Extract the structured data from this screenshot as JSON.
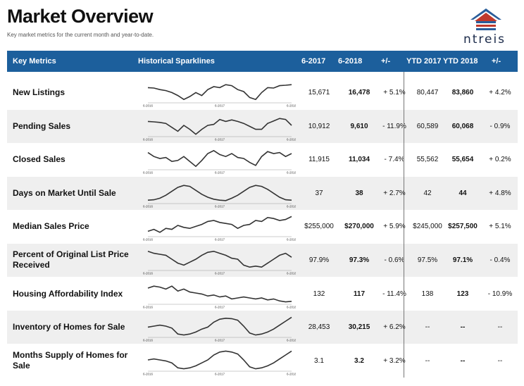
{
  "page": {
    "title": "Market Overview",
    "subtitle": "Key market metrics for the current month and year-to-date.",
    "logo_text": "ntreis"
  },
  "header": {
    "key_metrics": "Key Metrics",
    "sparklines": "Historical Sparklines",
    "m_2017": "6-2017",
    "m_2018": "6-2018",
    "change": "+/-",
    "ytd_2017": "YTD 2017",
    "ytd_2018": "YTD 2018",
    "ytd_change": "+/-"
  },
  "axis_labels": [
    "6-2016",
    "6-2017",
    "6-2018"
  ],
  "rows": [
    {
      "metric": "New Listings",
      "m2017": "15,671",
      "m2018": "16,478",
      "change": "+ 5.1%",
      "ytd2017": "80,447",
      "ytd2018": "83,860",
      "ytd_change": "+ 4.2%",
      "spark": [
        0.7,
        0.68,
        0.6,
        0.55,
        0.45,
        0.3,
        0.1,
        0.25,
        0.45,
        0.3,
        0.6,
        0.75,
        0.7,
        0.85,
        0.8,
        0.6,
        0.5,
        0.2,
        0.1,
        0.45,
        0.7,
        0.68,
        0.8,
        0.82,
        0.85
      ]
    },
    {
      "metric": "Pending Sales",
      "m2017": "10,912",
      "m2018": "9,610",
      "change": "- 11.9%",
      "ytd2017": "60,589",
      "ytd2018": "60,068",
      "ytd_change": "- 0.9%",
      "spark": [
        0.7,
        0.68,
        0.65,
        0.6,
        0.4,
        0.2,
        0.5,
        0.3,
        0.05,
        0.3,
        0.5,
        0.55,
        0.8,
        0.7,
        0.78,
        0.7,
        0.6,
        0.45,
        0.3,
        0.3,
        0.6,
        0.72,
        0.85,
        0.8,
        0.5
      ]
    },
    {
      "metric": "Closed Sales",
      "m2017": "11,915",
      "m2018": "11,034",
      "change": "- 7.4%",
      "ytd2017": "55,562",
      "ytd2018": "55,654",
      "ytd_change": "+ 0.2%",
      "spark": [
        0.8,
        0.6,
        0.5,
        0.55,
        0.35,
        0.4,
        0.6,
        0.35,
        0.1,
        0.4,
        0.75,
        0.9,
        0.7,
        0.6,
        0.75,
        0.55,
        0.5,
        0.3,
        0.15,
        0.6,
        0.85,
        0.75,
        0.8,
        0.6,
        0.75
      ]
    },
    {
      "metric": "Days on Market Until Sale",
      "m2017": "37",
      "m2018": "38",
      "change": "+ 2.7%",
      "ytd2017": "42",
      "ytd2018": "44",
      "ytd_change": "+ 4.8%",
      "spark": [
        0.1,
        0.12,
        0.2,
        0.35,
        0.55,
        0.75,
        0.85,
        0.8,
        0.6,
        0.4,
        0.25,
        0.15,
        0.1,
        0.08,
        0.2,
        0.35,
        0.55,
        0.75,
        0.85,
        0.8,
        0.65,
        0.45,
        0.25,
        0.12,
        0.1
      ]
    },
    {
      "metric": "Median Sales Price",
      "m2017": "$255,000",
      "m2018": "$270,000",
      "change": "+ 5.9%",
      "ytd2017": "$245,000",
      "ytd2018": "$257,500",
      "ytd_change": "+ 5.1%",
      "spark": [
        0.2,
        0.3,
        0.15,
        0.35,
        0.3,
        0.5,
        0.4,
        0.35,
        0.45,
        0.55,
        0.7,
        0.75,
        0.65,
        0.6,
        0.55,
        0.35,
        0.5,
        0.55,
        0.75,
        0.7,
        0.9,
        0.85,
        0.75,
        0.8,
        0.95
      ]
    },
    {
      "metric": "Percent of Original List Price Received",
      "m2017": "97.9%",
      "m2018": "97.3%",
      "change": "- 0.6%",
      "ytd2017": "97.5%",
      "ytd2018": "97.1%",
      "ytd_change": "- 0.4%",
      "spark": [
        0.9,
        0.8,
        0.75,
        0.7,
        0.5,
        0.3,
        0.2,
        0.35,
        0.5,
        0.7,
        0.85,
        0.9,
        0.8,
        0.7,
        0.55,
        0.5,
        0.2,
        0.1,
        0.15,
        0.1,
        0.3,
        0.5,
        0.7,
        0.8,
        0.6
      ]
    },
    {
      "metric": "Housing Affordability Index",
      "m2017": "132",
      "m2018": "117",
      "change": "- 11.4%",
      "ytd2017": "138",
      "ytd2018": "123",
      "ytd_change": "- 10.9%",
      "spark": [
        0.75,
        0.85,
        0.8,
        0.7,
        0.85,
        0.6,
        0.7,
        0.55,
        0.5,
        0.45,
        0.35,
        0.4,
        0.3,
        0.35,
        0.2,
        0.25,
        0.3,
        0.25,
        0.2,
        0.25,
        0.15,
        0.2,
        0.1,
        0.05,
        0.08
      ]
    },
    {
      "metric": "Inventory of Homes for Sale",
      "m2017": "28,453",
      "m2018": "30,215",
      "change": "+ 6.2%",
      "ytd2017": "--",
      "ytd2018": "--",
      "ytd_change": "--",
      "spark": [
        0.45,
        0.5,
        0.55,
        0.5,
        0.4,
        0.1,
        0.05,
        0.1,
        0.2,
        0.35,
        0.45,
        0.7,
        0.85,
        0.9,
        0.88,
        0.8,
        0.5,
        0.15,
        0.05,
        0.1,
        0.2,
        0.35,
        0.55,
        0.75,
        0.95
      ]
    },
    {
      "metric": "Months Supply of Homes for Sale",
      "m2017": "3.1",
      "m2018": "3.2",
      "change": "+ 3.2%",
      "ytd2017": "--",
      "ytd2018": "--",
      "ytd_change": "--",
      "spark": [
        0.5,
        0.55,
        0.5,
        0.45,
        0.35,
        0.1,
        0.05,
        0.1,
        0.2,
        0.35,
        0.5,
        0.75,
        0.9,
        0.95,
        0.9,
        0.8,
        0.5,
        0.15,
        0.05,
        0.1,
        0.2,
        0.35,
        0.55,
        0.75,
        0.95
      ]
    }
  ]
}
